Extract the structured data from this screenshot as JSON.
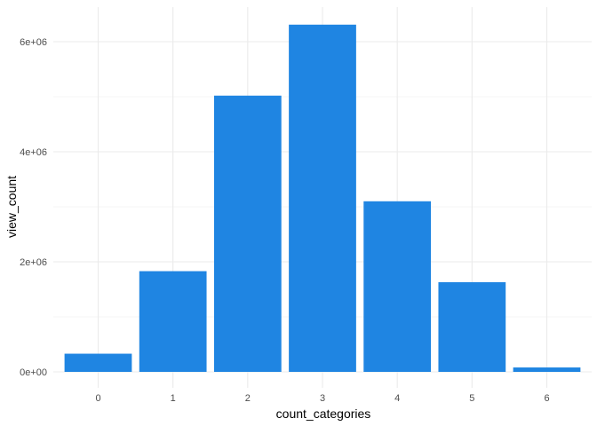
{
  "chart_data": {
    "type": "bar",
    "xlabel": "count_categories",
    "ylabel": "view_count",
    "categories": [
      "0",
      "1",
      "2",
      "3",
      "4",
      "5",
      "6"
    ],
    "values": [
      330000,
      1830000,
      5020000,
      6310000,
      3100000,
      1630000,
      80000
    ],
    "ylim": [
      0,
      6600000
    ],
    "y_ticks": [
      0,
      2000000,
      4000000,
      6000000
    ],
    "y_tick_labels": [
      "0e+00",
      "2e+06",
      "4e+06",
      "6e+06"
    ],
    "grid": true,
    "bar_color": "#1F85E2",
    "grid_color": "#EBEBEB",
    "background": "#FFFFFF"
  }
}
